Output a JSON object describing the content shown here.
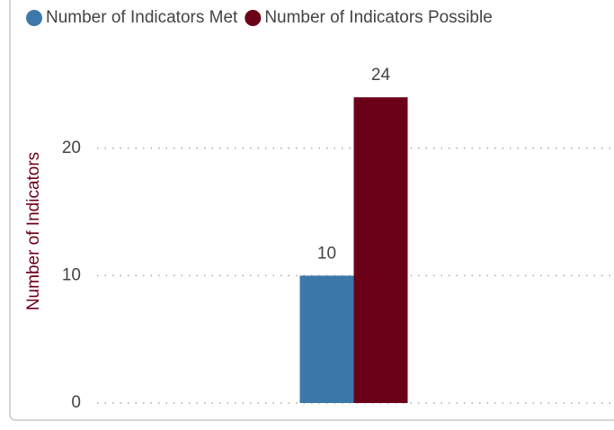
{
  "chart_data": {
    "type": "bar",
    "y_label": "Number of Indicators",
    "categories": [
      null
    ],
    "series": [
      {
        "name": "Number of Indicators Met",
        "color": "#3c78a9",
        "values": [
          10
        ]
      },
      {
        "name": "Number of Indicators Possible",
        "color": "#6b0019",
        "values": [
          24
        ]
      }
    ],
    "ylim": [
      0,
      25
    ],
    "yticks": [
      0,
      10,
      20
    ],
    "grid": true,
    "legend": "top"
  }
}
